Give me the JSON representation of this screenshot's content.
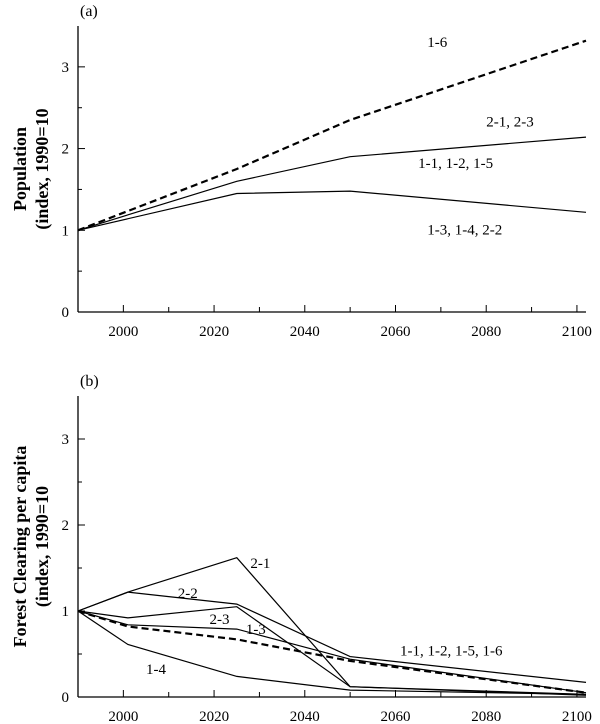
{
  "chart_data": [
    {
      "type": "line",
      "panel_label": "(a)",
      "title": "",
      "xlabel": "",
      "ylabel_lines": [
        "Population",
        "(index, 1990=10"
      ],
      "xlim": [
        1990,
        2102
      ],
      "ylim": [
        0,
        3.5
      ],
      "xticks": [
        2000,
        2020,
        2040,
        2060,
        2080,
        2100
      ],
      "yticks": [
        0,
        1,
        2,
        3
      ],
      "series": [
        {
          "name": "1-6",
          "style": "dashed",
          "x": [
            1990,
            2025,
            2050,
            2102
          ],
          "y": [
            1.0,
            1.75,
            2.35,
            3.32
          ]
        },
        {
          "name": "2-1, 2-3",
          "style": "solid",
          "x": [
            1990,
            2025,
            2050,
            2102
          ],
          "y": [
            1.0,
            1.6,
            1.9,
            2.14
          ]
        },
        {
          "name": "1-3, 1-4, 2-2",
          "style": "solid",
          "x": [
            1990,
            2025,
            2050,
            2102
          ],
          "y": [
            1.0,
            1.45,
            1.48,
            1.22
          ]
        }
      ],
      "annotations": [
        {
          "text": "1-6",
          "x": 2067,
          "y": 3.24
        },
        {
          "text": "2-1, 2-3",
          "x": 2080,
          "y": 2.27
        },
        {
          "text": "1-1, 1-2, 1-5",
          "x": 2065,
          "y": 1.76
        },
        {
          "text": "1-3, 1-4, 2-2",
          "x": 2067,
          "y": 0.95
        }
      ]
    },
    {
      "type": "line",
      "panel_label": "(b)",
      "title": "",
      "xlabel": "",
      "ylabel_lines": [
        "Forest Clearing per capita",
        "(index, 1990=10"
      ],
      "xlim": [
        1990,
        2102
      ],
      "ylim": [
        0,
        3.5
      ],
      "xticks": [
        2000,
        2020,
        2040,
        2060,
        2080,
        2100
      ],
      "yticks": [
        0,
        1,
        2,
        3
      ],
      "series": [
        {
          "name": "2-1",
          "style": "solid",
          "x": [
            1990,
            2001,
            2025,
            2050,
            2102
          ],
          "y": [
            1.0,
            1.22,
            1.62,
            0.12,
            0.02
          ]
        },
        {
          "name": "2-2",
          "style": "solid",
          "x": [
            1990,
            2001,
            2025,
            2050,
            2102
          ],
          "y": [
            1.0,
            1.22,
            1.08,
            0.47,
            0.17
          ]
        },
        {
          "name": "2-3",
          "style": "solid",
          "x": [
            1990,
            2001,
            2025,
            2050,
            2102
          ],
          "y": [
            1.0,
            0.92,
            1.05,
            0.12,
            0.03
          ]
        },
        {
          "name": "1-3",
          "style": "solid",
          "x": [
            1990,
            2001,
            2025,
            2050,
            2102
          ],
          "y": [
            1.0,
            0.84,
            0.79,
            0.44,
            0.05
          ]
        },
        {
          "name": "1-1, 1-2, 1-5, 1-6",
          "style": "dashed",
          "x": [
            1990,
            2001,
            2025,
            2050,
            2102
          ],
          "y": [
            1.0,
            0.82,
            0.67,
            0.42,
            0.05
          ]
        },
        {
          "name": "1-4",
          "style": "solid",
          "x": [
            1990,
            2001,
            2025,
            2050,
            2102
          ],
          "y": [
            1.0,
            0.61,
            0.24,
            0.08,
            0.03
          ]
        }
      ],
      "annotations": [
        {
          "text": "2-1",
          "x": 2028,
          "y": 1.5
        },
        {
          "text": "2-2",
          "x": 2012,
          "y": 1.15
        },
        {
          "text": "2-3",
          "x": 2019,
          "y": 0.85
        },
        {
          "text": "1-3",
          "x": 2027,
          "y": 0.73
        },
        {
          "text": "1-1, 1-2, 1-5, 1-6",
          "x": 2061,
          "y": 0.48
        },
        {
          "text": "1-4",
          "x": 2005,
          "y": 0.27
        }
      ]
    }
  ]
}
